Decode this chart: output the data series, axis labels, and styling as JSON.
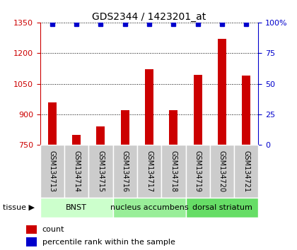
{
  "title": "GDS2344 / 1423201_at",
  "samples": [
    "GSM134713",
    "GSM134714",
    "GSM134715",
    "GSM134716",
    "GSM134717",
    "GSM134718",
    "GSM134719",
    "GSM134720",
    "GSM134721"
  ],
  "counts": [
    960,
    800,
    840,
    920,
    1120,
    920,
    1095,
    1270,
    1090
  ],
  "percentiles": [
    99,
    99,
    99,
    99,
    99,
    99,
    99,
    99,
    99
  ],
  "bar_color": "#cc0000",
  "dot_color": "#0000cc",
  "ylim_left": [
    750,
    1350
  ],
  "yticks_left": [
    750,
    900,
    1050,
    1200,
    1350
  ],
  "ylim_right": [
    0,
    100
  ],
  "yticks_right": [
    0,
    25,
    50,
    75,
    100
  ],
  "tissues": [
    {
      "label": "BNST",
      "start": 0,
      "end": 3,
      "color": "#ccffcc"
    },
    {
      "label": "nucleus accumbens",
      "start": 3,
      "end": 6,
      "color": "#99ee99"
    },
    {
      "label": "dorsal striatum",
      "start": 6,
      "end": 9,
      "color": "#66dd66"
    }
  ],
  "tissue_label": "tissue",
  "legend_count_label": "count",
  "legend_pct_label": "percentile rank within the sample",
  "bar_color_red": "#cc0000",
  "dot_color_blue": "#0000cc",
  "tick_bg_color": "#cccccc",
  "left_axis_color": "#cc0000",
  "right_axis_color": "#0000cc"
}
